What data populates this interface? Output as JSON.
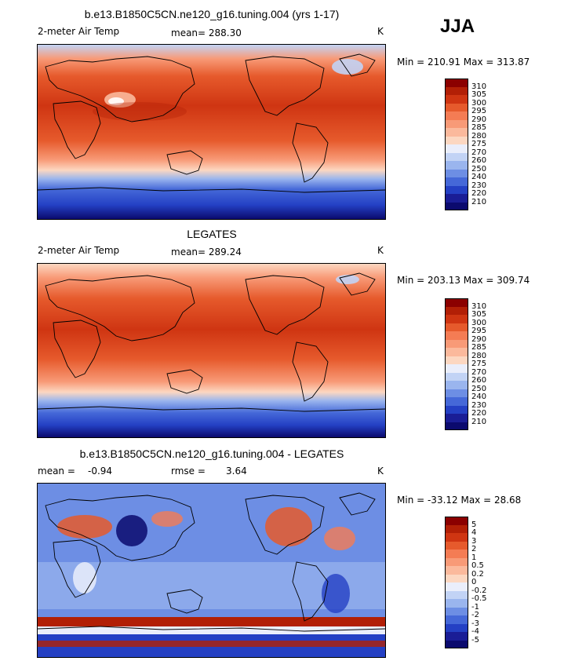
{
  "season": "JJA",
  "panels": [
    {
      "title": "b.e13.B1850C5CN.ne120_g16.tuning.004 (yrs 1-17)",
      "variable": "2-meter Air Temp",
      "stats_text": "mean= 288.30",
      "units": "K",
      "minmax": "Min = 210.91 Max = 313.87",
      "colorbar_labels": [
        "310",
        "305",
        "300",
        "295",
        "290",
        "285",
        "280",
        "275",
        "270",
        "260",
        "250",
        "240",
        "230",
        "220",
        "210"
      ],
      "colorbar_colors": [
        "#8b0000",
        "#b21f06",
        "#cf3512",
        "#e65a2c",
        "#f47c54",
        "#f89a77",
        "#fbb99c",
        "#fcd7c1",
        "#eaeefb",
        "#c2d3f5",
        "#9ab5ee",
        "#6d8ee4",
        "#4568d8",
        "#2440c4",
        "#1a1d96",
        "#0b0a6e"
      ]
    },
    {
      "title": "LEGATES",
      "variable": "2-meter Air Temp",
      "stats_text": "mean= 289.24",
      "units": "K",
      "minmax": "Min = 203.13 Max = 309.74",
      "colorbar_labels": [
        "310",
        "305",
        "300",
        "295",
        "290",
        "285",
        "280",
        "275",
        "270",
        "260",
        "250",
        "240",
        "230",
        "220",
        "210"
      ],
      "colorbar_colors": [
        "#8b0000",
        "#b21f06",
        "#cf3512",
        "#e65a2c",
        "#f47c54",
        "#f89a77",
        "#fbb99c",
        "#fcd7c1",
        "#eaeefb",
        "#c2d3f5",
        "#9ab5ee",
        "#6d8ee4",
        "#4568d8",
        "#2440c4",
        "#1a1d96",
        "#0b0a6e"
      ]
    },
    {
      "title": "b.e13.B1850C5CN.ne120_g16.tuning.004 - LEGATES",
      "mean_label": "mean =",
      "mean_value": "-0.94",
      "rmse_label": "rmse =",
      "rmse_value": "3.64",
      "units": "K",
      "minmax": "Min = -33.12 Max = 28.68",
      "colorbar_labels": [
        "5",
        "4",
        "3",
        "2",
        "1",
        "0.5",
        "0.2",
        "0",
        "-0.2",
        "-0.5",
        "-1",
        "-2",
        "-3",
        "-4",
        "-5"
      ],
      "colorbar_colors": [
        "#8b0000",
        "#b21f06",
        "#cf3512",
        "#e65a2c",
        "#f47c54",
        "#f89a77",
        "#fbb99c",
        "#fcd7c1",
        "#eaeefb",
        "#c2d3f5",
        "#9ab5ee",
        "#6d8ee4",
        "#4568d8",
        "#2440c4",
        "#1a1d96",
        "#0b0a6e"
      ]
    }
  ]
}
